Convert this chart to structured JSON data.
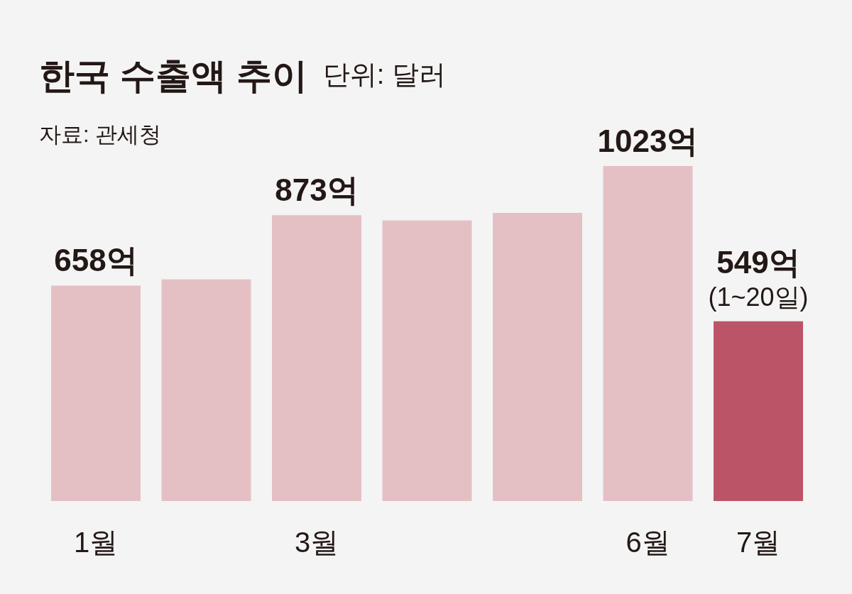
{
  "chart_data": {
    "type": "bar",
    "title": "한국 수출액 추이",
    "subtitle": "단위: 달러",
    "annotations": [
      "자료: 관세청",
      "(1~20일)"
    ],
    "categories": [
      "1월",
      null,
      "3월",
      null,
      null,
      "6월",
      "7월"
    ],
    "values": [
      658,
      677,
      873,
      857,
      880,
      1023,
      549
    ],
    "colors": [
      "#e4c0c4",
      "#e4c0c4",
      "#e4c0c4",
      "#e4c0c4",
      "#e4c0c4",
      "#e4c0c4",
      "#bc5468"
    ],
    "value_labels": [
      "658억",
      null,
      "873억",
      null,
      null,
      "1023억",
      "549억"
    ]
  }
}
